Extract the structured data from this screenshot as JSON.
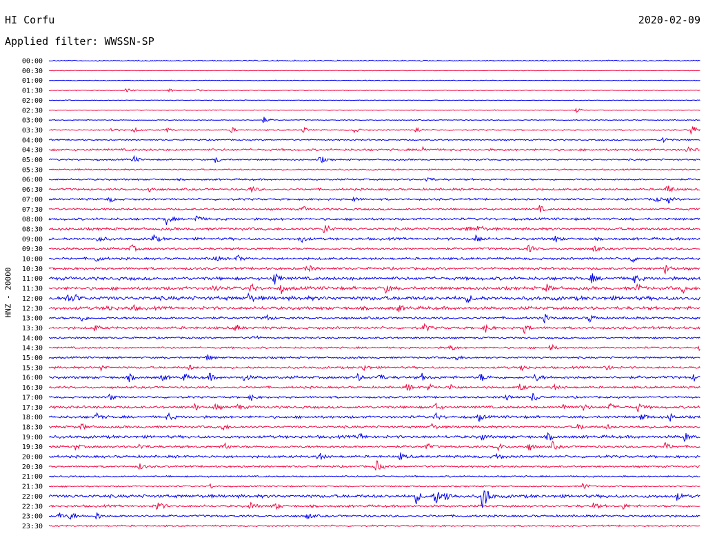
{
  "header": {
    "station": "HI Corfu",
    "date": "2020-02-09",
    "filter": "Applied filter: WWSSN-SP"
  },
  "colors": {
    "even_row": "#0000ee",
    "odd_row": "#ee0a44",
    "background": "#ffffff"
  },
  "chart_data": {
    "type": "line",
    "title": "HI Corfu",
    "subtitle": "Applied filter: WWSSN-SP",
    "ylabel": "HNZ - 20000",
    "xlabel": "",
    "row_labels": [
      "00:00",
      "00:30",
      "01:00",
      "01:30",
      "02:00",
      "02:30",
      "03:00",
      "03:30",
      "04:00",
      "04:30",
      "05:00",
      "05:30",
      "06:00",
      "06:30",
      "07:00",
      "07:30",
      "08:00",
      "08:30",
      "09:00",
      "09:30",
      "10:00",
      "10:30",
      "11:00",
      "11:30",
      "12:00",
      "12:30",
      "13:00",
      "13:30",
      "14:00",
      "14:30",
      "15:00",
      "15:30",
      "16:00",
      "16:30",
      "17:00",
      "17:30",
      "18:00",
      "18:30",
      "19:00",
      "19:30",
      "20:00",
      "20:30",
      "21:00",
      "21:30",
      "22:00",
      "22:30",
      "23:00",
      "23:30"
    ],
    "row_minutes": 30,
    "grid": false,
    "series": [
      {
        "row": 0,
        "noise": 0.6,
        "events": []
      },
      {
        "row": 1,
        "noise": 0.3,
        "events": []
      },
      {
        "row": 2,
        "noise": 0.4,
        "events": []
      },
      {
        "row": 3,
        "noise": 0.4,
        "events": [
          [
            3.6,
            4
          ],
          [
            5.5,
            3
          ],
          [
            6.9,
            3
          ]
        ]
      },
      {
        "row": 4,
        "noise": 0.4,
        "events": []
      },
      {
        "row": 5,
        "noise": 0.4,
        "events": [
          [
            24.3,
            3
          ]
        ]
      },
      {
        "row": 6,
        "noise": 0.5,
        "events": [
          [
            9.9,
            5
          ]
        ]
      },
      {
        "row": 7,
        "noise": 0.7,
        "events": [
          [
            2.9,
            4
          ],
          [
            3.9,
            4
          ],
          [
            5.4,
            4
          ],
          [
            8.4,
            4
          ],
          [
            11.7,
            5
          ],
          [
            14.0,
            5
          ],
          [
            16.9,
            5
          ],
          [
            29.6,
            10
          ]
        ]
      },
      {
        "row": 8,
        "noise": 0.8,
        "events": [
          [
            28.3,
            6
          ]
        ]
      },
      {
        "row": 9,
        "noise": 1.2,
        "events": [
          [
            17.2,
            5
          ],
          [
            29.4,
            5
          ]
        ]
      },
      {
        "row": 10,
        "noise": 0.9,
        "events": [
          [
            3.9,
            6
          ],
          [
            7.7,
            5
          ],
          [
            12.5,
            6
          ]
        ]
      },
      {
        "row": 11,
        "noise": 0.8,
        "events": []
      },
      {
        "row": 12,
        "noise": 1.0,
        "events": [
          [
            17.4,
            5
          ]
        ]
      },
      {
        "row": 13,
        "noise": 1.2,
        "events": [
          [
            4.6,
            5
          ],
          [
            9.3,
            5
          ],
          [
            28.5,
            9
          ]
        ]
      },
      {
        "row": 14,
        "noise": 1.1,
        "events": [
          [
            2.8,
            4
          ],
          [
            14.0,
            4
          ],
          [
            27.9,
            5
          ],
          [
            28.5,
            5
          ]
        ]
      },
      {
        "row": 15,
        "noise": 1.1,
        "events": [
          [
            11.7,
            4
          ],
          [
            22.6,
            5
          ]
        ]
      },
      {
        "row": 16,
        "noise": 1.3,
        "events": [
          [
            5.4,
            8
          ],
          [
            6.8,
            6
          ]
        ]
      },
      {
        "row": 17,
        "noise": 1.5,
        "events": [
          [
            12.7,
            9
          ],
          [
            19.3,
            5
          ],
          [
            19.8,
            6
          ]
        ]
      },
      {
        "row": 18,
        "noise": 1.4,
        "events": [
          [
            2.3,
            6
          ],
          [
            4.8,
            7
          ],
          [
            11.6,
            6
          ],
          [
            19.7,
            7
          ],
          [
            23.3,
            5
          ]
        ]
      },
      {
        "row": 19,
        "noise": 1.3,
        "events": [
          [
            3.8,
            6
          ],
          [
            22.1,
            5
          ],
          [
            25.1,
            5
          ]
        ]
      },
      {
        "row": 20,
        "noise": 1.3,
        "events": [
          [
            2.2,
            5
          ],
          [
            7.6,
            5
          ],
          [
            8.7,
            5
          ],
          [
            26.8,
            6
          ],
          [
            30.2,
            6
          ]
        ]
      },
      {
        "row": 21,
        "noise": 1.4,
        "events": [
          [
            11.9,
            6
          ],
          [
            28.4,
            8
          ]
        ]
      },
      {
        "row": 22,
        "noise": 1.8,
        "events": [
          [
            10.4,
            9
          ],
          [
            25.0,
            6
          ],
          [
            26.9,
            7
          ]
        ]
      },
      {
        "row": 23,
        "noise": 1.8,
        "events": [
          [
            7.6,
            6
          ],
          [
            9.3,
            6
          ],
          [
            10.7,
            6
          ],
          [
            15.5,
            6
          ],
          [
            22.9,
            6
          ],
          [
            27.1,
            6
          ],
          [
            29.2,
            6
          ]
        ]
      },
      {
        "row": 24,
        "noise": 2.2,
        "events": [
          [
            0.8,
            6
          ],
          [
            1.2,
            5
          ],
          [
            9.2,
            6
          ],
          [
            19.3,
            5
          ]
        ]
      },
      {
        "row": 25,
        "noise": 1.8,
        "events": [
          [
            2.7,
            5
          ],
          [
            3.8,
            5
          ],
          [
            16.1,
            5
          ],
          [
            30.4,
            6
          ]
        ]
      },
      {
        "row": 26,
        "noise": 1.3,
        "events": [
          [
            1.5,
            5
          ],
          [
            10.0,
            5
          ],
          [
            22.8,
            6
          ],
          [
            24.9,
            6
          ]
        ]
      },
      {
        "row": 27,
        "noise": 1.4,
        "events": [
          [
            2.1,
            5
          ],
          [
            8.6,
            5
          ],
          [
            17.3,
            6
          ],
          [
            20.1,
            6
          ],
          [
            21.9,
            7
          ]
        ]
      },
      {
        "row": 28,
        "noise": 1.0,
        "events": [
          [
            9.4,
            5
          ]
        ]
      },
      {
        "row": 29,
        "noise": 1.0,
        "events": [
          [
            18.5,
            5
          ],
          [
            23.1,
            6
          ],
          [
            30.0,
            5
          ]
        ]
      },
      {
        "row": 30,
        "noise": 1.1,
        "events": [
          [
            7.3,
            5
          ],
          [
            18.7,
            5
          ]
        ]
      },
      {
        "row": 31,
        "noise": 1.2,
        "events": [
          [
            2.4,
            5
          ],
          [
            6.4,
            5
          ],
          [
            14.5,
            5
          ],
          [
            21.8,
            5
          ],
          [
            25.6,
            6
          ]
        ]
      },
      {
        "row": 32,
        "noise": 1.5,
        "events": [
          [
            3.7,
            5
          ],
          [
            5.2,
            5
          ],
          [
            6.2,
            5
          ],
          [
            7.4,
            5
          ],
          [
            9.0,
            5
          ],
          [
            14.2,
            5
          ],
          [
            15.2,
            5
          ],
          [
            17.2,
            5
          ],
          [
            19.9,
            6
          ],
          [
            22.4,
            6
          ],
          [
            29.7,
            5
          ],
          [
            30.8,
            6
          ]
        ]
      },
      {
        "row": 33,
        "noise": 1.2,
        "events": [
          [
            16.5,
            6
          ],
          [
            17.5,
            6
          ],
          [
            18.5,
            5
          ],
          [
            21.7,
            6
          ],
          [
            23.2,
            5
          ]
        ]
      },
      {
        "row": 34,
        "noise": 1.1,
        "events": [
          [
            2.8,
            5
          ],
          [
            9.3,
            5
          ],
          [
            21.1,
            5
          ],
          [
            22.3,
            8
          ]
        ]
      },
      {
        "row": 35,
        "noise": 1.4,
        "events": [
          [
            6.7,
            5
          ],
          [
            7.6,
            5
          ],
          [
            8.7,
            5
          ],
          [
            17.8,
            6
          ],
          [
            23.7,
            6
          ],
          [
            24.6,
            6
          ],
          [
            25.8,
            6
          ],
          [
            27.1,
            7
          ]
        ]
      },
      {
        "row": 36,
        "noise": 1.4,
        "events": [
          [
            2.2,
            6
          ],
          [
            5.5,
            5
          ],
          [
            17.8,
            5
          ],
          [
            19.8,
            6
          ],
          [
            27.3,
            6
          ],
          [
            28.6,
            6
          ],
          [
            30.9,
            7
          ]
        ]
      },
      {
        "row": 37,
        "noise": 1.3,
        "events": [
          [
            1.5,
            5
          ],
          [
            8.0,
            5
          ],
          [
            17.6,
            5
          ],
          [
            24.4,
            5
          ],
          [
            25.6,
            5
          ]
        ]
      },
      {
        "row": 38,
        "noise": 1.6,
        "events": [
          [
            14.3,
            5
          ],
          [
            19.9,
            5
          ],
          [
            23.0,
            5
          ],
          [
            29.3,
            7
          ],
          [
            30.5,
            7
          ]
        ]
      },
      {
        "row": 39,
        "noise": 1.3,
        "events": [
          [
            1.2,
            5
          ],
          [
            4.2,
            5
          ],
          [
            8.1,
            7
          ],
          [
            17.4,
            5
          ],
          [
            20.7,
            6
          ],
          [
            22.1,
            6
          ],
          [
            23.2,
            6
          ],
          [
            28.4,
            6
          ],
          [
            30.6,
            8
          ]
        ]
      },
      {
        "row": 40,
        "noise": 1.4,
        "events": [
          [
            12.4,
            7
          ],
          [
            16.2,
            5
          ],
          [
            20.6,
            5
          ]
        ]
      },
      {
        "row": 41,
        "noise": 1.1,
        "events": [
          [
            4.2,
            5
          ],
          [
            15.1,
            9
          ]
        ]
      },
      {
        "row": 42,
        "noise": 0.9,
        "events": [
          [
            30.2,
            4
          ]
        ]
      },
      {
        "row": 43,
        "noise": 0.8,
        "events": [
          [
            7.4,
            4
          ],
          [
            24.6,
            6
          ]
        ]
      },
      {
        "row": 44,
        "noise": 1.8,
        "events": [
          [
            16.9,
            10
          ],
          [
            17.8,
            13
          ],
          [
            18.3,
            9
          ],
          [
            20.0,
            26
          ],
          [
            28.9,
            6
          ]
        ]
      },
      {
        "row": 45,
        "noise": 1.3,
        "events": [
          [
            5.0,
            9
          ],
          [
            9.3,
            6
          ],
          [
            10.4,
            6
          ],
          [
            25.1,
            5
          ],
          [
            26.4,
            5
          ]
        ]
      },
      {
        "row": 46,
        "noise": 1.2,
        "events": [
          [
            0.5,
            5
          ],
          [
            1.0,
            6
          ],
          [
            2.2,
            6
          ],
          [
            11.9,
            5
          ]
        ]
      },
      {
        "row": 47,
        "noise": 0.9,
        "events": []
      }
    ]
  }
}
